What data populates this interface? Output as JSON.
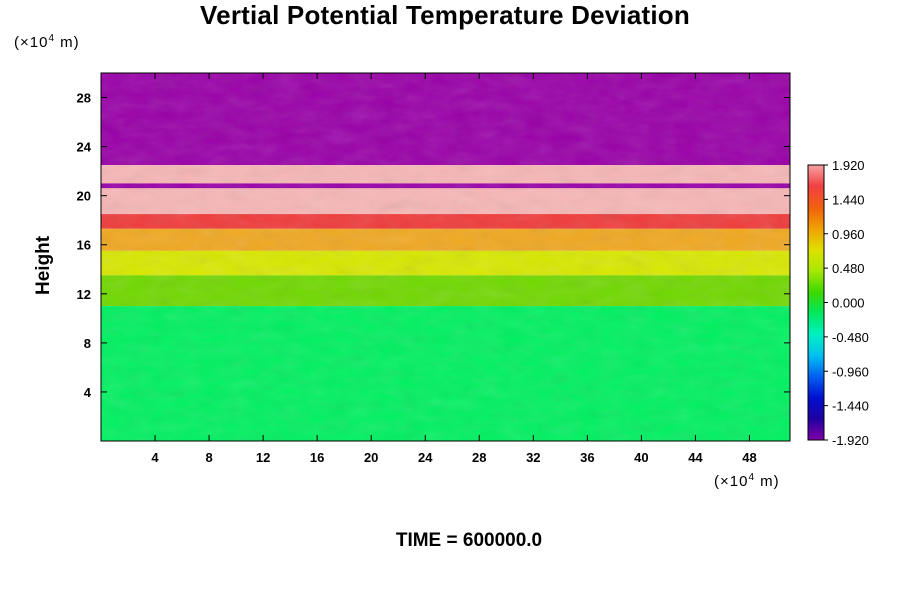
{
  "chart_data": {
    "type": "heatmap",
    "title": "Vertial Potential Temperature Deviation",
    "ylabel": "Height",
    "y_unit": "(×10",
    "y_unit_exp": "4",
    "y_unit_tail": " m)",
    "x_unit": "(×10",
    "x_unit_exp": "4",
    "x_unit_tail": " m)",
    "xlim": [
      0,
      51
    ],
    "ylim": [
      0,
      30
    ],
    "x_ticks": [
      4,
      8,
      12,
      16,
      20,
      24,
      28,
      32,
      36,
      40,
      44,
      48
    ],
    "y_ticks": [
      4,
      8,
      12,
      16,
      20,
      24,
      28
    ],
    "colorbar": {
      "min": -1.92,
      "max": 1.92,
      "tick_labels": [
        "1.920",
        "1.440",
        "0.960",
        "0.480",
        "0.000",
        "-0.480",
        "-0.960",
        "-1.440",
        "-1.920"
      ],
      "tick_values": [
        1.92,
        1.44,
        0.96,
        0.48,
        0.0,
        -0.48,
        -0.96,
        -1.44,
        -1.92
      ],
      "colors": [
        "#F7A3A3",
        "#F04040",
        "#F06010",
        "#F0A000",
        "#E0E000",
        "#A8E800",
        "#40D800",
        "#00E860",
        "#00F0C0",
        "#00C0F0",
        "#0060F0",
        "#0010D0",
        "#2000A0",
        "#8000A8"
      ]
    },
    "layers": [
      {
        "y_from": 22.5,
        "y_to": 30,
        "value": -1.92,
        "color": "#9900A8"
      },
      {
        "y_from": 21.0,
        "y_to": 22.5,
        "value": 1.92,
        "color": "#F7B6B6"
      },
      {
        "y_from": 20.6,
        "y_to": 21.0,
        "value": -1.92,
        "color": "#9900A8"
      },
      {
        "y_from": 18.5,
        "y_to": 20.6,
        "value": 1.92,
        "color": "#F7B6B6"
      },
      {
        "y_from": 17.3,
        "y_to": 18.5,
        "value": 1.6,
        "color": "#F03A3A"
      },
      {
        "y_from": 15.5,
        "y_to": 17.3,
        "value": 0.9,
        "color": "#F0A820"
      },
      {
        "y_from": 13.5,
        "y_to": 15.5,
        "value": 0.45,
        "color": "#D8E800"
      },
      {
        "y_from": 11.0,
        "y_to": 13.5,
        "value": 0.1,
        "color": "#70D800"
      },
      {
        "y_from": 0,
        "y_to": 11.0,
        "value": -0.1,
        "color": "#00F060"
      }
    ],
    "time_label": "TIME = 600000.0"
  }
}
